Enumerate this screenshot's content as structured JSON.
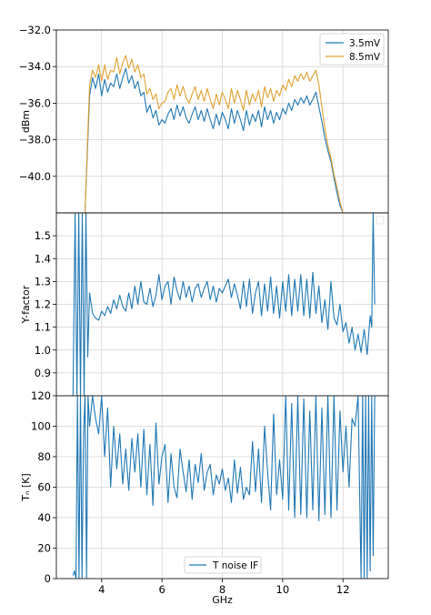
{
  "chart_data": [
    {
      "type": "line",
      "ylabel": "dBm",
      "xlim": [
        2.5,
        13.5
      ],
      "ylim": [
        -42,
        -32
      ],
      "yticks": [
        -32,
        -34,
        -36,
        -38,
        -40
      ],
      "grid": true,
      "legend": {
        "placement": "top-right",
        "entries": [
          "3.5mV",
          "8.5mV"
        ]
      },
      "series": [
        {
          "name": "3.5mV",
          "color": "#1f77b4",
          "x": [
            3.45,
            3.6,
            3.7,
            3.8,
            3.9,
            4.0,
            4.1,
            4.2,
            4.3,
            4.4,
            4.5,
            4.6,
            4.7,
            4.8,
            4.9,
            5.0,
            5.1,
            5.2,
            5.3,
            5.4,
            5.5,
            5.6,
            5.7,
            5.8,
            5.9,
            6.0,
            6.1,
            6.2,
            6.3,
            6.4,
            6.5,
            6.6,
            6.7,
            6.8,
            6.9,
            7.0,
            7.1,
            7.2,
            7.3,
            7.4,
            7.5,
            7.6,
            7.7,
            7.8,
            7.9,
            8.0,
            8.1,
            8.2,
            8.3,
            8.4,
            8.5,
            8.6,
            8.7,
            8.8,
            8.9,
            9.0,
            9.1,
            9.2,
            9.3,
            9.4,
            9.5,
            9.6,
            9.7,
            9.8,
            9.9,
            10.0,
            10.1,
            10.2,
            10.3,
            10.4,
            10.5,
            10.6,
            10.7,
            10.8,
            10.9,
            11.0,
            11.1,
            11.2,
            11.3,
            11.4,
            11.5,
            11.6,
            11.7,
            11.8,
            11.9,
            12.0
          ],
          "y": [
            -42,
            -35.6,
            -34.6,
            -35.2,
            -34.4,
            -35.6,
            -34.7,
            -35.4,
            -34.9,
            -35.1,
            -34.4,
            -35.2,
            -34.6,
            -34.1,
            -34.9,
            -34.5,
            -35.2,
            -34.8,
            -35.6,
            -35.4,
            -36.5,
            -36.1,
            -36.8,
            -36.4,
            -37.2,
            -36.9,
            -37.1,
            -36.6,
            -36.3,
            -36.9,
            -36.1,
            -36.7,
            -36.2,
            -36.8,
            -37.1,
            -36.6,
            -36.2,
            -36.9,
            -36.4,
            -37.0,
            -36.3,
            -36.9,
            -37.4,
            -36.6,
            -37.2,
            -36.5,
            -36.9,
            -37.4,
            -36.3,
            -37.1,
            -36.4,
            -36.9,
            -37.5,
            -36.4,
            -37.2,
            -36.6,
            -37.0,
            -36.4,
            -37.3,
            -36.2,
            -36.9,
            -36.4,
            -37.1,
            -36.5,
            -36.9,
            -36.3,
            -36.6,
            -36.0,
            -36.4,
            -35.8,
            -36.1,
            -35.7,
            -36.0,
            -35.6,
            -36.1,
            -35.8,
            -35.4,
            -36.2,
            -37.0,
            -37.9,
            -38.6,
            -39.2,
            -40.1,
            -40.9,
            -41.6,
            -42
          ]
        },
        {
          "name": "8.5mV",
          "color": "#e0a030",
          "x": [
            3.45,
            3.6,
            3.7,
            3.8,
            3.9,
            4.0,
            4.1,
            4.2,
            4.3,
            4.4,
            4.5,
            4.6,
            4.7,
            4.8,
            4.9,
            5.0,
            5.1,
            5.2,
            5.3,
            5.4,
            5.5,
            5.6,
            5.7,
            5.8,
            5.9,
            6.0,
            6.1,
            6.2,
            6.3,
            6.4,
            6.5,
            6.6,
            6.7,
            6.8,
            6.9,
            7.0,
            7.1,
            7.2,
            7.3,
            7.4,
            7.5,
            7.6,
            7.7,
            7.8,
            7.9,
            8.0,
            8.1,
            8.2,
            8.3,
            8.4,
            8.5,
            8.6,
            8.7,
            8.8,
            8.9,
            9.0,
            9.1,
            9.2,
            9.3,
            9.4,
            9.5,
            9.6,
            9.7,
            9.8,
            9.9,
            10.0,
            10.1,
            10.2,
            10.3,
            10.4,
            10.5,
            10.6,
            10.7,
            10.8,
            10.9,
            11.0,
            11.1,
            11.2,
            11.3,
            11.4,
            11.5,
            11.6,
            11.7,
            11.8,
            11.9,
            12.0
          ],
          "y": [
            -42,
            -35.0,
            -34.2,
            -34.6,
            -33.9,
            -34.8,
            -33.9,
            -34.7,
            -34.2,
            -34.3,
            -33.5,
            -34.4,
            -33.8,
            -33.4,
            -34.1,
            -33.6,
            -34.3,
            -33.9,
            -34.6,
            -34.4,
            -35.5,
            -35.2,
            -35.8,
            -35.5,
            -36.3,
            -36.0,
            -35.9,
            -35.4,
            -35.2,
            -35.8,
            -35.0,
            -35.6,
            -35.1,
            -35.7,
            -36.0,
            -35.5,
            -35.1,
            -35.8,
            -35.3,
            -35.9,
            -35.2,
            -35.8,
            -36.3,
            -35.5,
            -36.1,
            -35.4,
            -35.8,
            -36.3,
            -35.2,
            -36.0,
            -35.3,
            -35.8,
            -36.4,
            -35.3,
            -36.1,
            -35.5,
            -35.9,
            -35.3,
            -36.2,
            -35.1,
            -35.7,
            -35.2,
            -35.9,
            -35.3,
            -35.6,
            -35.0,
            -35.3,
            -34.7,
            -35.1,
            -34.5,
            -34.8,
            -34.4,
            -34.7,
            -34.3,
            -34.8,
            -34.5,
            -34.2,
            -35.0,
            -36.2,
            -37.4,
            -38.3,
            -39.0,
            -39.9,
            -40.6,
            -41.4,
            -42
          ]
        }
      ]
    },
    {
      "type": "line",
      "ylabel": "Y-factor",
      "xlim": [
        2.5,
        13.5
      ],
      "ylim": [
        0.8,
        1.6
      ],
      "yticks": [
        1.5,
        1.4,
        1.3,
        1.2,
        1.1,
        1.0,
        0.9
      ],
      "grid": true,
      "legend": {
        "placement": "top-right",
        "entries": []
      },
      "series": [
        {
          "color": "#1f77b4",
          "x": [
            3.05,
            3.12,
            3.18,
            3.24,
            3.3,
            3.36,
            3.42,
            3.48,
            3.54,
            3.6,
            3.7,
            3.8,
            3.9,
            4.0,
            4.1,
            4.2,
            4.3,
            4.4,
            4.5,
            4.6,
            4.7,
            4.8,
            4.9,
            5.0,
            5.1,
            5.2,
            5.3,
            5.4,
            5.5,
            5.6,
            5.7,
            5.8,
            5.9,
            6.0,
            6.1,
            6.2,
            6.3,
            6.4,
            6.5,
            6.6,
            6.7,
            6.8,
            6.9,
            7.0,
            7.1,
            7.2,
            7.3,
            7.4,
            7.5,
            7.6,
            7.7,
            7.8,
            7.9,
            8.0,
            8.1,
            8.2,
            8.3,
            8.4,
            8.5,
            8.6,
            8.7,
            8.8,
            8.9,
            9.0,
            9.1,
            9.2,
            9.3,
            9.4,
            9.5,
            9.6,
            9.7,
            9.8,
            9.9,
            10.0,
            10.1,
            10.2,
            10.3,
            10.4,
            10.5,
            10.6,
            10.7,
            10.8,
            10.9,
            11.0,
            11.1,
            11.2,
            11.3,
            11.4,
            11.5,
            11.6,
            11.7,
            11.8,
            11.9,
            12.0,
            12.1,
            12.2,
            12.3,
            12.4,
            12.5,
            12.6,
            12.7,
            12.8,
            12.9,
            12.95,
            13.0,
            13.05
          ],
          "y": [
            0.8,
            1.6,
            0.8,
            1.6,
            0.8,
            1.6,
            0.8,
            1.6,
            0.97,
            1.25,
            1.16,
            1.14,
            1.13,
            1.17,
            1.15,
            1.19,
            1.16,
            1.22,
            1.18,
            1.24,
            1.19,
            1.17,
            1.25,
            1.18,
            1.28,
            1.2,
            1.3,
            1.21,
            1.2,
            1.27,
            1.19,
            1.24,
            1.33,
            1.22,
            1.28,
            1.3,
            1.2,
            1.32,
            1.26,
            1.22,
            1.3,
            1.23,
            1.28,
            1.21,
            1.27,
            1.29,
            1.23,
            1.27,
            1.3,
            1.22,
            1.28,
            1.21,
            1.27,
            1.25,
            1.28,
            1.31,
            1.23,
            1.29,
            1.24,
            1.18,
            1.3,
            1.19,
            1.31,
            1.16,
            1.25,
            1.3,
            1.15,
            1.29,
            1.17,
            1.32,
            1.16,
            1.28,
            1.14,
            1.3,
            1.17,
            1.33,
            1.15,
            1.31,
            1.17,
            1.33,
            1.15,
            1.31,
            1.14,
            1.34,
            1.16,
            1.28,
            1.12,
            1.22,
            1.09,
            1.3,
            1.14,
            1.11,
            1.2,
            1.08,
            1.12,
            1.03,
            1.1,
            1.0,
            1.07,
            0.99,
            1.09,
            0.98,
            1.15,
            1.1,
            1.6,
            1.2
          ]
        }
      ]
    },
    {
      "type": "line",
      "ylabel": "Tₙ [K]",
      "xlabel": "GHz",
      "xlim": [
        2.5,
        13.5
      ],
      "xticks": [
        4,
        6,
        8,
        10,
        12
      ],
      "ylim": [
        0,
        120
      ],
      "yticks": [
        120,
        100,
        80,
        60,
        40,
        20,
        0
      ],
      "grid": true,
      "legend": {
        "placement": "lower-center",
        "entries": [
          "T noise IF"
        ]
      },
      "series": [
        {
          "name": "T noise IF",
          "color": "#1f77b4",
          "x": [
            3.05,
            3.1,
            3.15,
            3.2,
            3.25,
            3.3,
            3.35,
            3.4,
            3.45,
            3.5,
            3.55,
            3.6,
            3.7,
            3.8,
            3.9,
            4.0,
            4.1,
            4.2,
            4.3,
            4.4,
            4.5,
            4.6,
            4.7,
            4.8,
            4.9,
            5.0,
            5.1,
            5.2,
            5.3,
            5.4,
            5.5,
            5.6,
            5.7,
            5.8,
            5.9,
            6.0,
            6.1,
            6.2,
            6.3,
            6.4,
            6.5,
            6.6,
            6.7,
            6.8,
            6.9,
            7.0,
            7.1,
            7.2,
            7.3,
            7.4,
            7.5,
            7.6,
            7.7,
            7.8,
            7.9,
            8.0,
            8.1,
            8.2,
            8.3,
            8.4,
            8.5,
            8.6,
            8.7,
            8.8,
            8.9,
            9.0,
            9.1,
            9.2,
            9.3,
            9.4,
            9.5,
            9.6,
            9.7,
            9.8,
            9.9,
            10.0,
            10.1,
            10.2,
            10.3,
            10.4,
            10.5,
            10.6,
            10.7,
            10.8,
            10.9,
            11.0,
            11.1,
            11.2,
            11.3,
            11.4,
            11.5,
            11.6,
            11.7,
            11.8,
            11.9,
            12.0,
            12.1,
            12.2,
            12.3,
            12.4,
            12.5,
            12.6,
            12.65,
            12.7,
            12.75,
            12.8,
            12.85,
            12.9,
            12.95,
            13.0,
            13.05
          ],
          "y": [
            2,
            5,
            0,
            120,
            0,
            120,
            0,
            95,
            120,
            0,
            120,
            100,
            120,
            105,
            95,
            120,
            80,
            112,
            60,
            100,
            72,
            95,
            62,
            85,
            58,
            92,
            70,
            95,
            60,
            98,
            55,
            88,
            48,
            102,
            62,
            80,
            88,
            50,
            82,
            60,
            53,
            85,
            70,
            57,
            78,
            52,
            75,
            63,
            82,
            58,
            70,
            75,
            55,
            68,
            62,
            72,
            58,
            66,
            50,
            78,
            56,
            73,
            52,
            60,
            55,
            90,
            57,
            85,
            50,
            100,
            70,
            45,
            108,
            55,
            78,
            52,
            120,
            45,
            115,
            40,
            120,
            42,
            118,
            40,
            110,
            45,
            120,
            38,
            112,
            42,
            120,
            40,
            120,
            45,
            110,
            70,
            100,
            60,
            105,
            100,
            120,
            0,
            120,
            0,
            120,
            0,
            120,
            5,
            120,
            15,
            120
          ]
        }
      ]
    }
  ]
}
